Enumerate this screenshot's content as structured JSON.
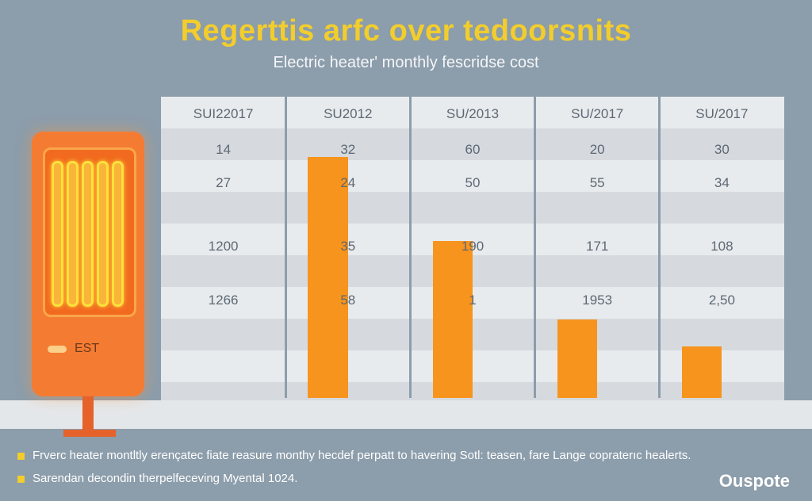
{
  "chart_data": {
    "type": "bar",
    "title": "Regerttis arfc over tedoorsnits",
    "subtitle": "Electric heater' monthly fescridse cost",
    "columns": [
      "SUI2201​7",
      "SU2012",
      "SU/2013",
      "SU/2017",
      "SU/2017"
    ],
    "rows": [
      [
        "14",
        "32",
        "60",
        "20",
        "30"
      ],
      [
        "27",
        "24",
        "50",
        "55",
        "34"
      ],
      [
        "1200",
        "35",
        "190",
        "171",
        "108"
      ],
      [
        "1266",
        "58",
        "1",
        "1953",
        "2,50"
      ]
    ],
    "series": [
      {
        "values": [
          null,
          80,
          52,
          26,
          17
        ]
      }
    ],
    "ylim": [
      0,
      100
    ],
    "grid": true
  },
  "heater": {
    "label": "EST"
  },
  "footer": {
    "notes": [
      "Frverc heater montltly erençatec fiate reasure monthy hecdef perpatt to havering Sotl: teasen, fare Lange copraterıc healerts.",
      "Sarendan decondin therpelfeceving Myental 1024."
    ],
    "brand": "Ouspote"
  },
  "colors": {
    "background": "#8c9dab",
    "title": "#f2cd2c",
    "bar": "#f7941e",
    "heater": "#f47b32",
    "coil": "#ffe13a"
  }
}
